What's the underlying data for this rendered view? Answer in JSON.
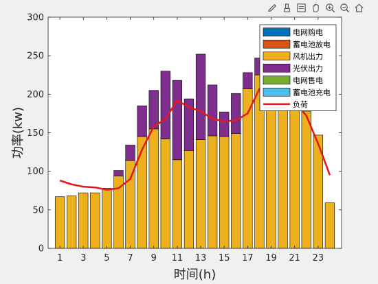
{
  "toolbar": {
    "icons": [
      "edit-plot-icon",
      "brush-icon",
      "datatip-icon",
      "pan-icon",
      "zoom-in-icon",
      "zoom-out-icon",
      "home-icon"
    ]
  },
  "chart_data": {
    "type": "bar",
    "stacked": true,
    "xlabel": "时间(h)",
    "ylabel": "功率(kw)",
    "ylim": [
      0,
      300
    ],
    "yticks": [
      0,
      50,
      100,
      150,
      200,
      250,
      300
    ],
    "xlim": [
      0,
      25
    ],
    "xticks": [
      1,
      3,
      5,
      7,
      9,
      11,
      13,
      15,
      17,
      19,
      21,
      23
    ],
    "x": [
      1,
      2,
      3,
      4,
      5,
      6,
      7,
      8,
      9,
      10,
      11,
      12,
      13,
      14,
      15,
      16,
      17,
      18,
      19,
      20,
      21,
      22,
      23,
      24
    ],
    "legend_position": "top-right",
    "series": [
      {
        "name": "电网购电",
        "color": "#0072bd",
        "values": [
          0,
          0,
          0,
          0,
          0,
          0,
          0,
          0,
          0,
          0,
          0,
          0,
          0,
          0,
          0,
          0,
          0,
          0,
          0,
          0,
          0,
          0,
          0,
          0
        ]
      },
      {
        "name": "蓄电池放电",
        "color": "#d95319",
        "values": [
          0,
          0,
          0,
          0,
          0,
          0,
          0,
          0,
          0,
          0,
          0,
          0,
          0,
          0,
          0,
          0,
          0,
          0,
          0,
          0,
          0,
          0,
          0,
          0
        ]
      },
      {
        "name": "风机出力",
        "color": "#edb120",
        "values": [
          67,
          68,
          72,
          72,
          78,
          94,
          114,
          145,
          155,
          142,
          115,
          127,
          141,
          146,
          145,
          149,
          207,
          225,
          200,
          195,
          196,
          178,
          147,
          59
        ]
      },
      {
        "name": "光伏出力",
        "color": "#7e2f8e",
        "values": [
          0,
          0,
          0,
          0,
          0,
          7,
          20,
          40,
          50,
          88,
          103,
          67,
          111,
          66,
          32,
          52,
          21,
          22,
          0,
          0,
          0,
          0,
          0,
          0
        ]
      },
      {
        "name": "电网售电",
        "color": "#77ac30",
        "values": [
          0,
          0,
          0,
          0,
          0,
          0,
          0,
          0,
          0,
          0,
          0,
          0,
          0,
          0,
          0,
          0,
          0,
          0,
          0,
          0,
          0,
          0,
          0,
          0
        ]
      },
      {
        "name": "蓄电池充电",
        "color": "#4dbeee",
        "values": [
          0,
          0,
          0,
          0,
          0,
          0,
          0,
          0,
          0,
          0,
          0,
          0,
          0,
          0,
          0,
          0,
          0,
          0,
          0,
          0,
          0,
          0,
          0,
          0
        ]
      }
    ],
    "line": {
      "name": "负荷",
      "color": "#e31a1c",
      "values": [
        88,
        83,
        80,
        79,
        76,
        78,
        90,
        128,
        158,
        168,
        192,
        183,
        178,
        168,
        165,
        166,
        175,
        207,
        215,
        205,
        190,
        172,
        136,
        95
      ]
    }
  }
}
